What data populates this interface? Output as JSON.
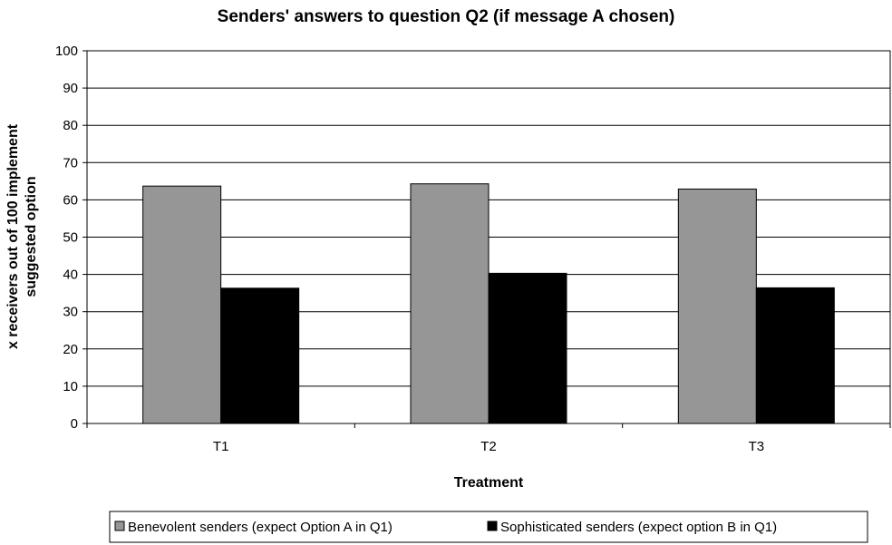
{
  "chart_data": {
    "type": "bar",
    "title": "Senders' answers to question Q2 (if message A chosen)",
    "xlabel": "Treatment",
    "ylabel_lines": [
      "x receivers out of 100 implement",
      "suggested option"
    ],
    "categories": [
      "T1",
      "T2",
      "T3"
    ],
    "ylim": [
      0,
      100
    ],
    "yticks": [
      0,
      10,
      20,
      30,
      40,
      50,
      60,
      70,
      80,
      90,
      100
    ],
    "grid": true,
    "legend_position": "bottom",
    "series": [
      {
        "name": "Benevolent senders (expect Option A in Q1)",
        "color": "#969696",
        "values": [
          63.7,
          64.3,
          62.9
        ]
      },
      {
        "name": "Sophisticated senders (expect option B in Q1)",
        "color": "#000000",
        "values": [
          36.3,
          40.3,
          36.4
        ]
      }
    ]
  }
}
